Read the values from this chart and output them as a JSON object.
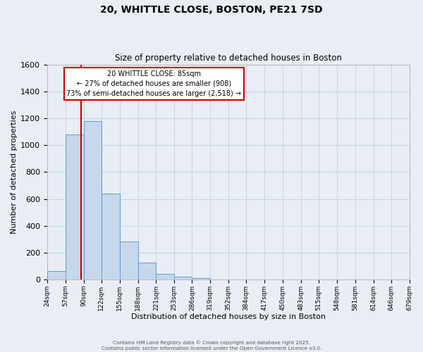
{
  "title": "20, WHITTLE CLOSE, BOSTON, PE21 7SD",
  "subtitle": "Size of property relative to detached houses in Boston",
  "xlabel": "Distribution of detached houses by size in Boston",
  "ylabel": "Number of detached properties",
  "bin_edges": [
    24,
    57,
    90,
    122,
    155,
    188,
    221,
    253,
    286,
    319,
    352,
    384,
    417,
    450,
    483,
    515,
    548,
    581,
    614,
    646,
    679
  ],
  "bar_heights": [
    60,
    1080,
    1180,
    640,
    285,
    125,
    40,
    20,
    10,
    0,
    0,
    0,
    0,
    0,
    0,
    0,
    0,
    0,
    0,
    0
  ],
  "bar_color": "#c5d8ec",
  "bar_edge_color": "#6699cc",
  "property_line_x": 85,
  "property_line_color": "#cc0000",
  "annotation_title": "20 WHITTLE CLOSE: 85sqm",
  "annotation_line2": "← 27% of detached houses are smaller (908)",
  "annotation_line3": "73% of semi-detached houses are larger (2,518) →",
  "annotation_box_facecolor": "#ffffff",
  "annotation_box_edgecolor": "#cc0000",
  "ylim": [
    0,
    1600
  ],
  "yticks": [
    0,
    200,
    400,
    600,
    800,
    1000,
    1200,
    1400,
    1600
  ],
  "background_color": "#e8eef4",
  "grid_color": "#c8d4de",
  "footnote1": "Contains HM Land Registry data © Crown copyright and database right 2025.",
  "footnote2": "Contains public sector information licensed under the Open Government Licence v3.0."
}
